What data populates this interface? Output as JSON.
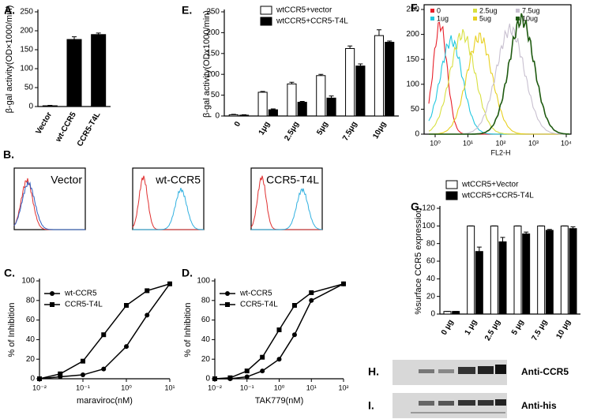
{
  "chart_data": [
    {
      "type": "bar",
      "panel_label": "A.",
      "y_label": "β-gal activity(OD×1000/min)",
      "categories": [
        "Vector",
        "wt-CCR5",
        "CCR5-T4L"
      ],
      "values": [
        2,
        177,
        190
      ],
      "errors": [
        1,
        7,
        4
      ],
      "color": "#000000",
      "ylim": [
        0,
        250
      ],
      "yticks": [
        0,
        50,
        100,
        150,
        200,
        250
      ]
    },
    {
      "type": "bar",
      "panel_label": "E.",
      "y_label": "β-gal activity(ODx1000/min)",
      "categories": [
        "0",
        "1μg",
        "2.5μg",
        "5μg",
        "7.5μg",
        "10μg"
      ],
      "series": [
        {
          "name": "wtCCR5+vector",
          "color": "#ffffff",
          "values": [
            3,
            57,
            77,
            97,
            162,
            193
          ],
          "errors": [
            1,
            2,
            4,
            3,
            6,
            14
          ]
        },
        {
          "name": "wtCCR5+CCR5-T4L",
          "color": "#000000",
          "values": [
            2,
            15,
            33,
            43,
            120,
            177
          ],
          "errors": [
            1,
            2,
            2,
            5,
            5,
            3
          ]
        }
      ],
      "ylim": [
        0,
        250
      ],
      "yticks": [
        0,
        50,
        100,
        150,
        200,
        250
      ]
    },
    {
      "type": "flow",
      "panel_label": "F.",
      "x_label": "FL2-H",
      "xscale": "log",
      "series": [
        {
          "name": "0",
          "color": "#e8202a"
        },
        {
          "name": "1ug",
          "color": "#22c8e0"
        },
        {
          "name": "2.5ug",
          "color": "#d8e040"
        },
        {
          "name": "5ug",
          "color": "#e8d020"
        },
        {
          "name": "7.5ug",
          "color": "#c8c0d0"
        },
        {
          "name": "10ug",
          "color": "#1e5a10"
        }
      ],
      "xlim": [
        1,
        10000
      ],
      "xticks": [
        {
          "value": 1,
          "label": "10⁰"
        },
        {
          "value": 10,
          "label": "10¹"
        },
        {
          "value": 100,
          "label": "10²"
        },
        {
          "value": 1000,
          "label": "10³"
        },
        {
          "value": 10000,
          "label": "10⁴"
        }
      ],
      "ylim": [
        0,
        250
      ],
      "yticks": [
        0,
        50,
        100,
        150,
        200,
        250
      ]
    },
    {
      "type": "bar",
      "panel_label": "G.",
      "y_label": "%surface CCR5 expression",
      "categories": [
        "0 μg",
        "1 μg",
        "2.5 μg",
        "5 μg",
        "7.5 μg",
        "10 μg"
      ],
      "series": [
        {
          "name": "wtCCR5+Vector",
          "color": "#ffffff",
          "values": [
            3,
            100,
            100,
            100,
            100,
            100
          ],
          "errors": [
            0,
            0,
            0,
            0,
            0,
            0
          ]
        },
        {
          "name": "wtCCR5+CCR5-T4L",
          "color": "#000000",
          "values": [
            3,
            71,
            82,
            91,
            95,
            97
          ],
          "errors": [
            0,
            5,
            5,
            2,
            1,
            2
          ]
        }
      ],
      "ylim": [
        0,
        120
      ],
      "yticks": [
        0,
        20,
        40,
        60,
        80,
        100,
        120
      ]
    },
    {
      "type": "line",
      "panel_label": "C.",
      "y_label": "% of Inhibition",
      "x_label": "maraviroc(nM)",
      "xscale": "log",
      "x": [
        0.01,
        0.03,
        0.1,
        0.3,
        1,
        3,
        10
      ],
      "series": [
        {
          "name": "wt-CCR5",
          "color": "#000000",
          "marker": "circle",
          "values": [
            0,
            2,
            4,
            10,
            33,
            65,
            97
          ]
        },
        {
          "name": "CCR5-T4L",
          "color": "#000000",
          "marker": "square",
          "values": [
            0,
            5,
            18,
            45,
            75,
            90,
            97
          ]
        }
      ],
      "xlim": [
        0.01,
        10
      ],
      "xticks": [
        {
          "value": 0.01,
          "label": "10⁻²"
        },
        {
          "value": 0.1,
          "label": "10⁻¹"
        },
        {
          "value": 1,
          "label": "10⁰"
        },
        {
          "value": 10,
          "label": "10¹"
        }
      ],
      "ylim": [
        0,
        100
      ],
      "yticks": [
        0,
        20,
        40,
        60,
        80,
        100
      ]
    },
    {
      "type": "line",
      "panel_label": "D.",
      "y_label": "% of Inhibition",
      "x_label": "TAK779(nM)",
      "xscale": "log",
      "x": [
        0.01,
        0.03,
        0.1,
        0.3,
        1,
        3,
        10,
        100
      ],
      "series": [
        {
          "name": "wt-CCR5",
          "color": "#000000",
          "marker": "circle",
          "values": [
            0,
            0,
            2,
            8,
            20,
            45,
            80,
            97
          ]
        },
        {
          "name": "CCR5-T4L",
          "color": "#000000",
          "marker": "square",
          "values": [
            0,
            1,
            8,
            22,
            50,
            75,
            88,
            97
          ]
        }
      ],
      "xlim": [
        0.01,
        100
      ],
      "xticks": [
        {
          "value": 0.01,
          "label": "10⁻²"
        },
        {
          "value": 0.1,
          "label": "10⁻¹"
        },
        {
          "value": 1,
          "label": "10⁰"
        },
        {
          "value": 10,
          "label": "10¹"
        },
        {
          "value": 100,
          "label": "10²"
        }
      ],
      "ylim": [
        0,
        100
      ],
      "yticks": [
        0,
        20,
        40,
        60,
        80,
        100
      ]
    }
  ],
  "panel_b": {
    "panel_label": "B.",
    "titles": [
      "Vector",
      "wt-CCR5",
      "CCR5-T4L"
    ]
  },
  "blots": [
    {
      "panel_label": "H.",
      "antibody": "Anti-CCR5"
    },
    {
      "panel_label": "I.",
      "antibody": "Anti-his"
    }
  ]
}
